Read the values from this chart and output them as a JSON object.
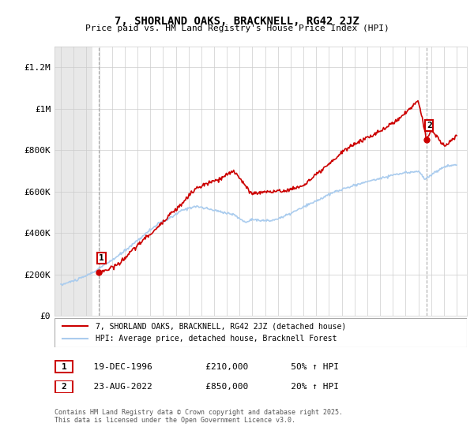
{
  "title": "7, SHORLAND OAKS, BRACKNELL, RG42 2JZ",
  "subtitle": "Price paid vs. HM Land Registry's House Price Index (HPI)",
  "xlabel": "",
  "ylabel": "",
  "ylim": [
    0,
    1300000
  ],
  "xlim_start": 1993.5,
  "xlim_end": 2025.8,
  "yticks": [
    0,
    200000,
    400000,
    600000,
    800000,
    1000000,
    1200000
  ],
  "ytick_labels": [
    "£0",
    "£200K",
    "£400K",
    "£600K",
    "£800K",
    "£1M",
    "£1.2M"
  ],
  "xticks": [
    1994,
    1995,
    1996,
    1997,
    1998,
    1999,
    2000,
    2001,
    2002,
    2003,
    2004,
    2005,
    2006,
    2007,
    2008,
    2009,
    2010,
    2011,
    2012,
    2013,
    2014,
    2015,
    2016,
    2017,
    2018,
    2019,
    2020,
    2021,
    2022,
    2023,
    2024,
    2025
  ],
  "red_line_color": "#cc0000",
  "blue_line_color": "#aaccee",
  "annotation_box_color": "#cc0000",
  "sale1_x": 1996.97,
  "sale1_y": 210000,
  "sale1_label": "1",
  "sale2_x": 2022.64,
  "sale2_y": 850000,
  "sale2_label": "2",
  "legend_line1": "7, SHORLAND OAKS, BRACKNELL, RG42 2JZ (detached house)",
  "legend_line2": "HPI: Average price, detached house, Bracknell Forest",
  "table_row1": [
    "1",
    "19-DEC-1996",
    "£210,000",
    "50% ↑ HPI"
  ],
  "table_row2": [
    "2",
    "23-AUG-2022",
    "£850,000",
    "20% ↑ HPI"
  ],
  "footnote": "Contains HM Land Registry data © Crown copyright and database right 2025.\nThis data is licensed under the Open Government Licence v3.0.",
  "hatch_region_end": 1996.5,
  "background_color": "#ffffff"
}
